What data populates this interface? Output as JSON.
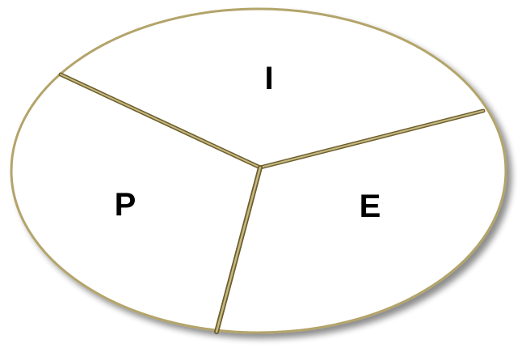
{
  "diagram": {
    "segments": [
      {
        "label": "I"
      },
      {
        "label": "P"
      },
      {
        "label": "E"
      }
    ],
    "colors": {
      "fill": "#ffffff",
      "outline": "#b3a46a",
      "divider_dark": "#6b5f2e",
      "divider_light": "#c7b781",
      "shadow": "#555555"
    }
  }
}
